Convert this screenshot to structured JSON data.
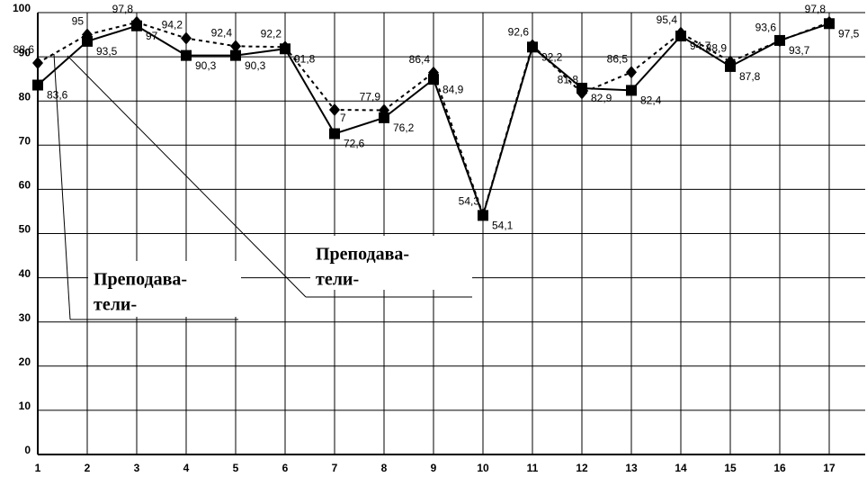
{
  "chart_data": {
    "type": "line",
    "x": [
      1,
      2,
      3,
      4,
      5,
      6,
      7,
      8,
      9,
      10,
      11,
      12,
      13,
      14,
      15,
      16,
      17
    ],
    "xlim": [
      1,
      17
    ],
    "xticks": [
      1,
      2,
      3,
      4,
      5,
      6,
      7,
      8,
      9,
      10,
      11,
      12,
      13,
      14,
      15,
      16,
      17
    ],
    "ylim": [
      0,
      100
    ],
    "yticks": [
      0,
      10,
      20,
      30,
      40,
      50,
      60,
      70,
      80,
      90,
      100
    ],
    "grid": true,
    "series": [
      {
        "color": "#000000",
        "line_style": "dashed",
        "marker": "diamond",
        "values": [
          88.6,
          95,
          97.8,
          94.2,
          92.4,
          92.2,
          78,
          77.9,
          86.4,
          54.3,
          92.6,
          81.8,
          86.5,
          95.4,
          88.9,
          93.6,
          97.8
        ],
        "value_labels": [
          "88,6",
          "95",
          "97,8",
          "94,2",
          "92,4",
          "92,2",
          null,
          "77,9",
          "86,4",
          "54,3",
          "92,6",
          "81,8",
          "86,5",
          "95,4",
          "88,9",
          "93,6",
          "97,8"
        ]
      },
      {
        "color": "#000000",
        "line_style": "solid",
        "marker": "square",
        "values": [
          83.6,
          93.5,
          97,
          90.3,
          90.3,
          91.8,
          72.6,
          76.2,
          84.9,
          54.1,
          92.2,
          82.9,
          82.4,
          94.7,
          87.8,
          93.7,
          97.5
        ],
        "value_labels": [
          "83,6",
          "93,5",
          "97",
          "90,3",
          "90,3",
          "91,8",
          "72,6",
          "76,2",
          "84,9",
          "54,1",
          "92,2",
          "82,9",
          "82,4",
          "94,7",
          "87,8",
          "93,7",
          "97,5"
        ]
      }
    ],
    "annotations": [
      {
        "text": "7"
      }
    ],
    "callouts": [
      {
        "lines": [
          "Преподава-",
          "тели-"
        ]
      },
      {
        "lines": [
          "Преподава-",
          "тели-"
        ]
      }
    ]
  }
}
